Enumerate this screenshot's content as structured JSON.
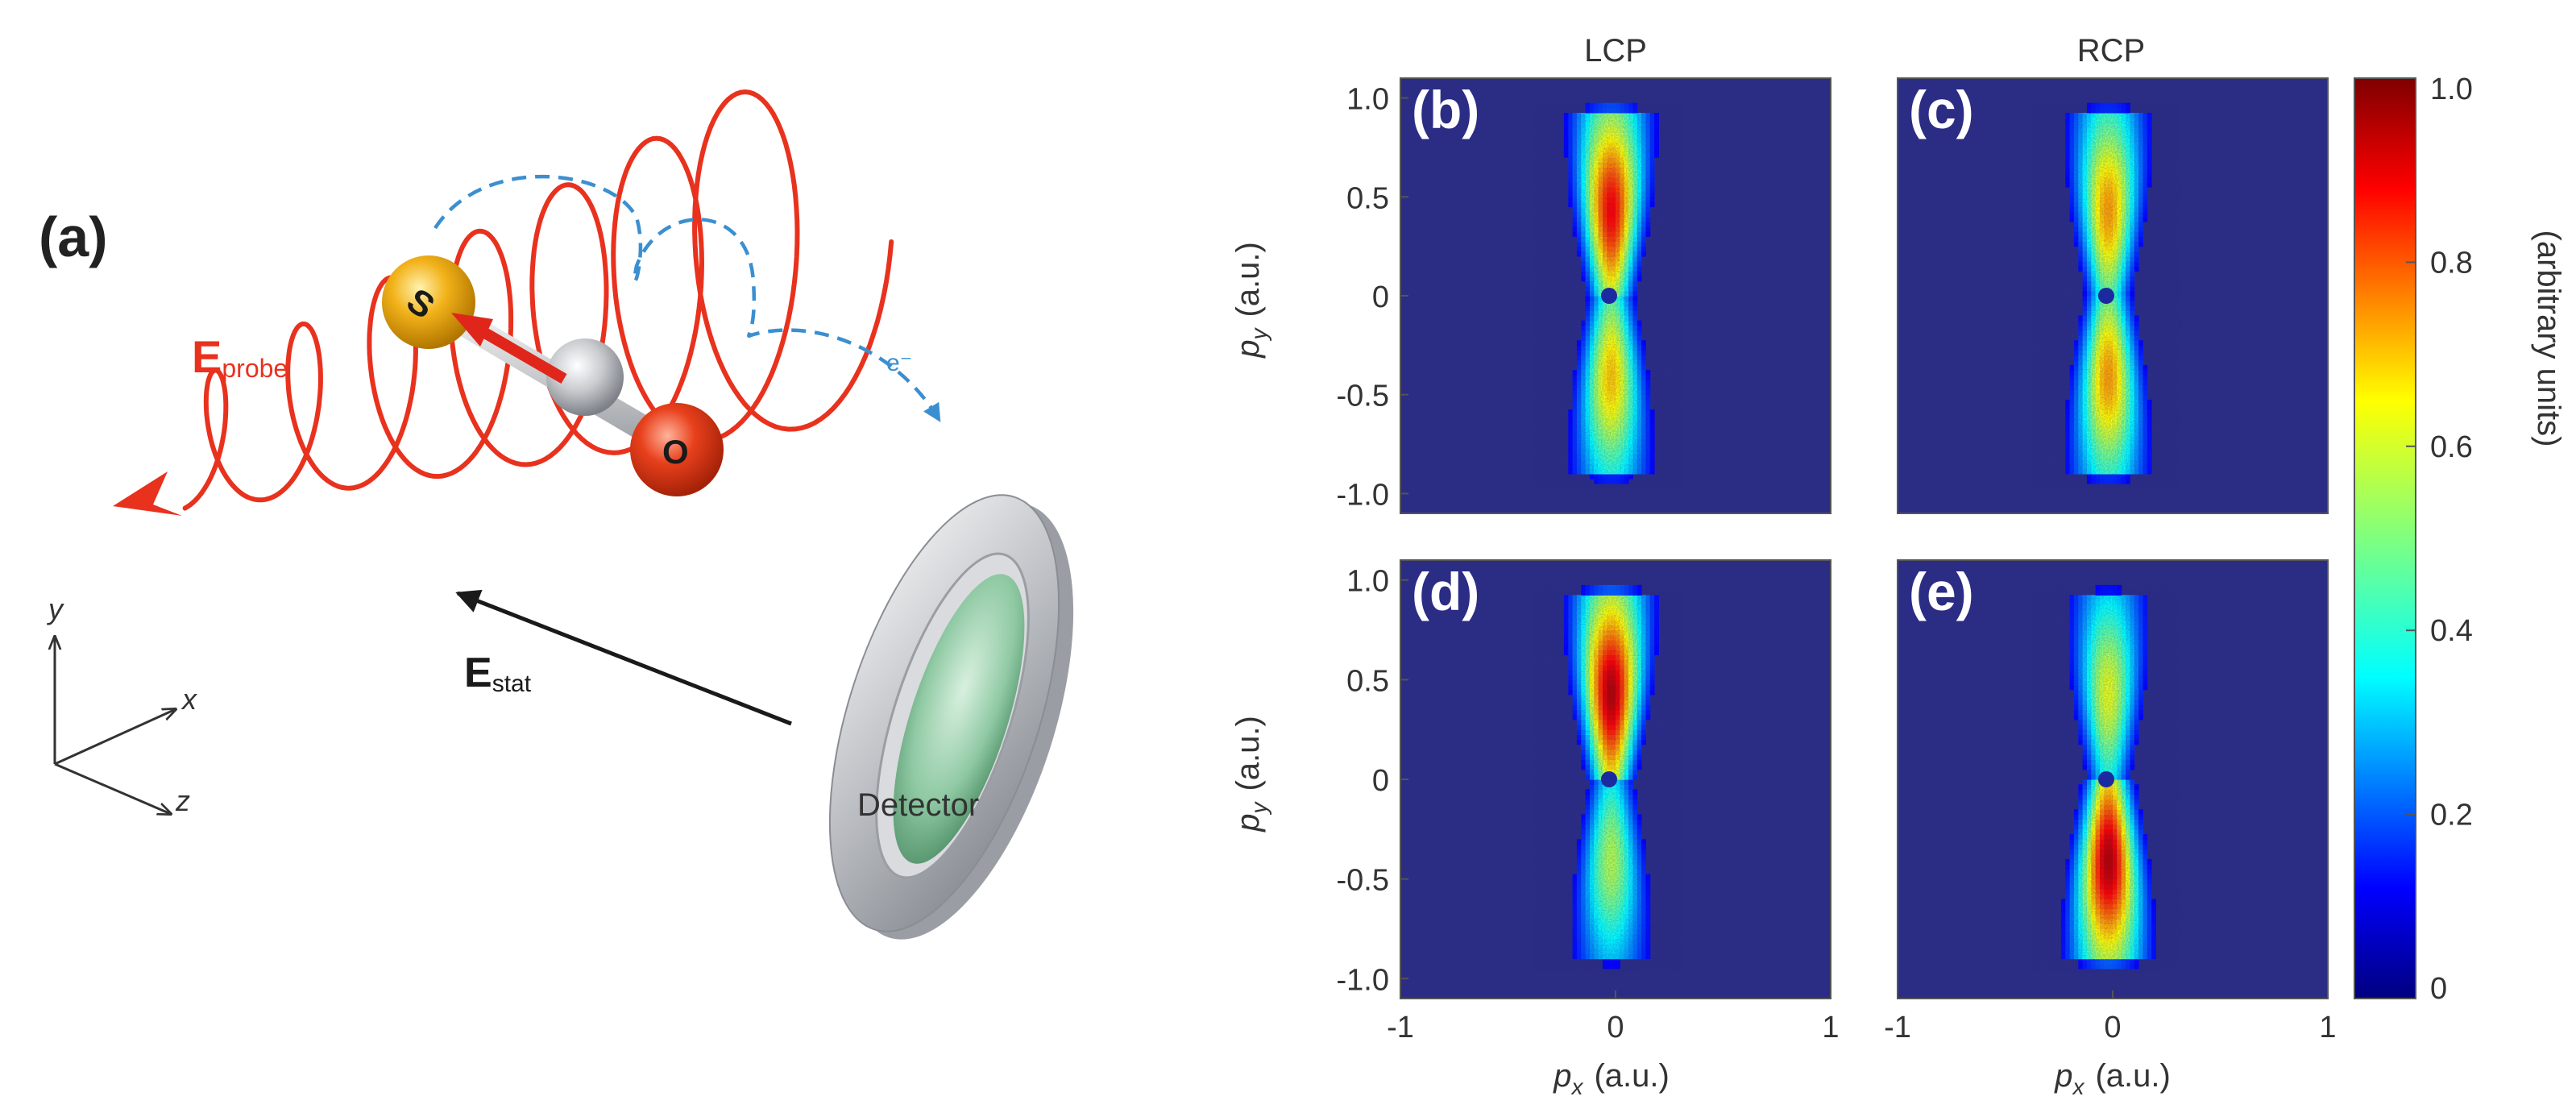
{
  "panel_a": {
    "label": "(a)",
    "probe_label_main": "E",
    "probe_label_sub": "probe",
    "stat_label_main": "E",
    "stat_label_sub": "stat",
    "atom_s": "S",
    "atom_o": "O",
    "electron_label": "e⁻",
    "detector_label": "Detector",
    "axis_x": "x",
    "axis_y": "y",
    "axis_z": "z"
  },
  "colors": {
    "probe_red": "#e8321e",
    "sulfur_yellow": "#f2b21a",
    "oxygen_red": "#e8401c",
    "electron_blue": "#3b8fd0",
    "map_background": "#2b2c84",
    "center_dot": "#1c2aa0"
  },
  "chart_data": {
    "type": "heatmap",
    "column_titles": [
      "LCP",
      "RCP"
    ],
    "xlabel_main": "p",
    "xlabel_sub": "x",
    "xlabel_unit": "(a.u.)",
    "ylabel_main": "p",
    "ylabel_sub": "y",
    "ylabel_unit": "(a.u.)",
    "xlim": [
      -1,
      1
    ],
    "ylim": [
      -1.1,
      1.1
    ],
    "x_ticks": [
      "-1",
      "0",
      "1"
    ],
    "y_ticks": [
      "1.0",
      "0.5",
      "0",
      "-0.5",
      "-1.0"
    ],
    "colorbar": {
      "label": "(arbitrary units)",
      "range": [
        0,
        1
      ],
      "ticks": [
        "1.0",
        "0.8",
        "0.6",
        "0.4",
        "0.2",
        "0"
      ],
      "colormap": "jet"
    },
    "panels": [
      {
        "label": "(b)",
        "polarization": "LCP",
        "peak_upper": 0.88,
        "peak_lower": 0.68,
        "center": [
          -0.03,
          0.0
        ]
      },
      {
        "label": "(c)",
        "polarization": "RCP",
        "peak_upper": 0.72,
        "peak_lower": 0.72,
        "center": [
          -0.03,
          0.0
        ]
      },
      {
        "label": "(d)",
        "polarization": "LCP",
        "peak_upper": 0.95,
        "peak_lower": 0.55,
        "center": [
          -0.03,
          0.0
        ]
      },
      {
        "label": "(e)",
        "polarization": "RCP",
        "peak_upper": 0.6,
        "peak_lower": 0.95,
        "center": [
          -0.03,
          0.0
        ]
      }
    ]
  }
}
